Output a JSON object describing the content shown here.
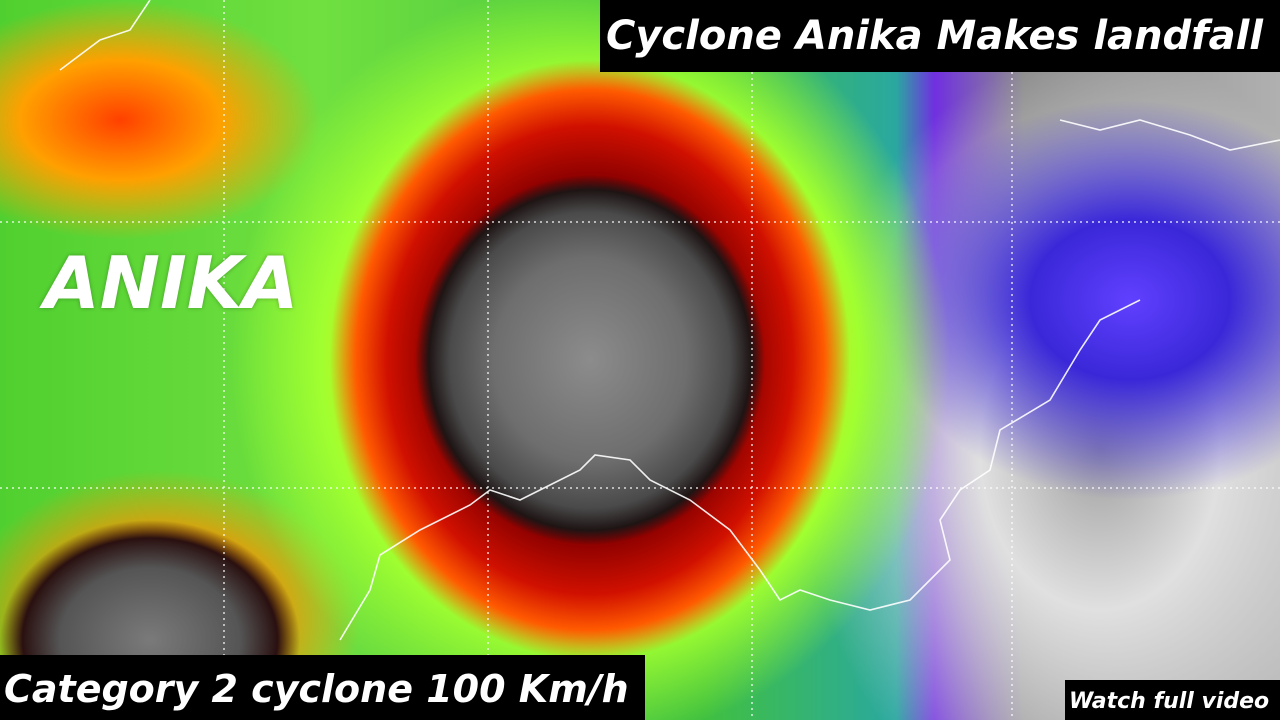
{
  "header": {
    "title": "Cyclone Anika Makes landfall"
  },
  "storm_label": "ANIKA",
  "caption": "Category 2 cyclone 100 Km/h",
  "call_to_action": "Watch full video"
}
